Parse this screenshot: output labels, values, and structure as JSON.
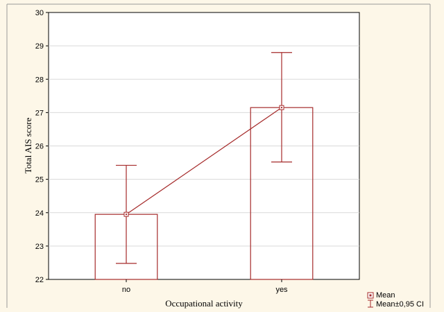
{
  "chart_data": {
    "type": "bar",
    "xlabel": "Occupational activity",
    "ylabel": "Total AIS score",
    "categories": [
      "no",
      "yes"
    ],
    "series": [
      {
        "name": "Mean",
        "values": [
          23.95,
          27.15
        ],
        "ci_lower": [
          22.48,
          25.52
        ],
        "ci_upper": [
          25.42,
          28.8
        ]
      }
    ],
    "ylim": [
      22,
      30
    ],
    "yticks": [
      22,
      23,
      24,
      25,
      26,
      27,
      28,
      29,
      30
    ],
    "grid": true,
    "legend": {
      "position": "bottom-right",
      "items": [
        "Mean",
        "Mean±0,95 CI"
      ]
    },
    "colors": {
      "series": "#a52a2a",
      "plot_background": "#ffffff",
      "page_background": "#fdf7e8",
      "gridline": "#d9d9d9"
    }
  }
}
